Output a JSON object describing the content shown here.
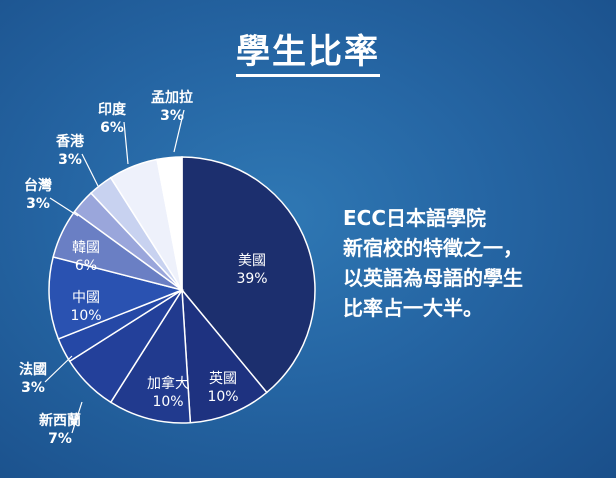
{
  "title": "學生比率",
  "description": {
    "lines": [
      "ECC日本語學院",
      "新宿校的特徵之一，",
      "以英語為母語的學生",
      "比率占一大半。"
    ]
  },
  "chart_data": {
    "type": "pie",
    "categories": [
      "美國",
      "英國",
      "加拿大",
      "新西蘭",
      "法國",
      "中國",
      "韓國",
      "台灣",
      "香港",
      "印度",
      "孟加拉"
    ],
    "values": [
      39,
      10,
      10,
      7,
      3,
      10,
      6,
      3,
      3,
      6,
      3
    ],
    "value_labels": [
      "39%",
      "10%",
      "10%",
      "7%",
      "3%",
      "10%",
      "6%",
      "3%",
      "3%",
      "6%",
      "3%"
    ],
    "colors": [
      "#1c2f6e",
      "#1e3280",
      "#213a8e",
      "#23409a",
      "#2548a6",
      "#2a52b1",
      "#6a7fc4",
      "#9aa6db",
      "#c8d2f0",
      "#eef1fb",
      "#ffffff"
    ],
    "title": "學生比率",
    "legend": "none"
  }
}
